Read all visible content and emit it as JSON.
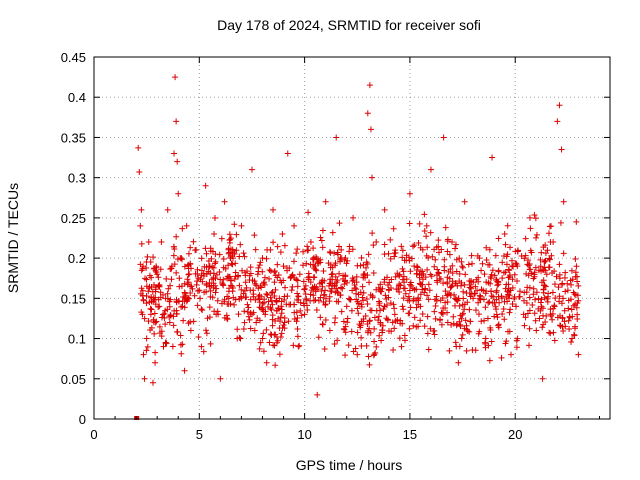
{
  "chart_data": {
    "type": "scatter",
    "title": "Day 178 of 2024, SRMTID for receiver sofi",
    "xlabel": "GPS time / hours",
    "ylabel": "SRMTID / TECUs",
    "xlim": [
      0,
      24.5
    ],
    "ylim": [
      0,
      0.45
    ],
    "x_ticks": [
      0,
      5,
      10,
      15,
      20
    ],
    "x_tick_labels": [
      "0",
      "5",
      "10",
      "15",
      "20"
    ],
    "y_ticks": [
      0,
      0.05,
      0.1,
      0.15,
      0.2,
      0.25,
      0.3,
      0.35,
      0.4,
      0.45
    ],
    "y_tick_labels": [
      "0",
      "0.05",
      "0.1",
      "0.15",
      "0.2",
      "0.25",
      "0.3",
      "0.35",
      "0.4",
      "0.45"
    ],
    "grid": true,
    "legend": "none",
    "marker": "plus",
    "marker_color": "#dd0000",
    "x_range_of_data": [
      2.0,
      23.0
    ],
    "series": [
      {
        "points": [
          [
            2.0,
            0.0
          ],
          [
            2.05,
            0.0
          ],
          [
            2.1,
            0.337
          ],
          [
            2.15,
            0.307
          ],
          [
            2.2,
            0.24
          ],
          [
            2.25,
            0.26
          ],
          [
            2.3,
            0.13
          ],
          [
            2.35,
            0.08
          ],
          [
            2.4,
            0.05
          ],
          [
            2.5,
            0.1
          ],
          [
            2.6,
            0.22
          ],
          [
            2.7,
            0.13
          ],
          [
            2.8,
            0.045
          ],
          [
            2.9,
            0.07
          ],
          [
            3.0,
            0.18
          ],
          [
            3.1,
            0.14
          ],
          [
            3.2,
            0.22
          ],
          [
            3.3,
            0.09
          ],
          [
            3.4,
            0.15
          ],
          [
            3.5,
            0.26
          ],
          [
            3.6,
            0.12
          ],
          [
            3.7,
            0.19
          ],
          [
            3.8,
            0.33
          ],
          [
            3.85,
            0.425
          ],
          [
            3.9,
            0.37
          ],
          [
            3.95,
            0.32
          ],
          [
            4.0,
            0.28
          ],
          [
            4.1,
            0.2
          ],
          [
            4.2,
            0.14
          ],
          [
            4.3,
            0.06
          ],
          [
            4.4,
            0.24
          ],
          [
            4.5,
            0.17
          ],
          [
            4.6,
            0.11
          ],
          [
            4.8,
            0.21
          ],
          [
            5.0,
            0.16
          ],
          [
            5.1,
            0.09
          ],
          [
            5.3,
            0.29
          ],
          [
            5.5,
            0.19
          ],
          [
            5.7,
            0.23
          ],
          [
            5.8,
            0.13
          ],
          [
            6.0,
            0.05
          ],
          [
            6.2,
            0.27
          ],
          [
            6.4,
            0.15
          ],
          [
            6.6,
            0.2
          ],
          [
            6.8,
            0.1
          ],
          [
            7.0,
            0.24
          ],
          [
            7.2,
            0.17
          ],
          [
            7.5,
            0.31
          ],
          [
            7.7,
            0.12
          ],
          [
            8.0,
            0.2
          ],
          [
            8.2,
            0.07
          ],
          [
            8.5,
            0.26
          ],
          [
            8.8,
            0.15
          ],
          [
            9.0,
            0.19
          ],
          [
            9.2,
            0.33
          ],
          [
            9.5,
            0.24
          ],
          [
            9.7,
            0.09
          ],
          [
            10.0,
            0.13
          ],
          [
            10.3,
            0.22
          ],
          [
            10.6,
            0.03
          ],
          [
            10.8,
            0.17
          ],
          [
            11.0,
            0.27
          ],
          [
            11.2,
            0.11
          ],
          [
            11.5,
            0.35
          ],
          [
            11.7,
            0.2
          ],
          [
            12.0,
            0.14
          ],
          [
            12.3,
            0.25
          ],
          [
            12.5,
            0.08
          ],
          [
            12.8,
            0.18
          ],
          [
            13.0,
            0.38
          ],
          [
            13.1,
            0.415
          ],
          [
            13.15,
            0.36
          ],
          [
            13.2,
            0.3
          ],
          [
            13.4,
            0.22
          ],
          [
            13.6,
            0.12
          ],
          [
            13.8,
            0.26
          ],
          [
            14.0,
            0.16
          ],
          [
            14.3,
            0.21
          ],
          [
            14.6,
            0.09
          ],
          [
            15.0,
            0.28
          ],
          [
            15.2,
            0.19
          ],
          [
            15.5,
            0.14
          ],
          [
            15.8,
            0.24
          ],
          [
            16.0,
            0.31
          ],
          [
            16.3,
            0.17
          ],
          [
            16.6,
            0.35
          ],
          [
            16.8,
            0.12
          ],
          [
            17.0,
            0.22
          ],
          [
            17.3,
            0.07
          ],
          [
            17.6,
            0.27
          ],
          [
            18.0,
            0.15
          ],
          [
            18.3,
            0.2
          ],
          [
            18.6,
            0.1
          ],
          [
            18.9,
            0.325
          ],
          [
            19.2,
            0.17
          ],
          [
            19.5,
            0.23
          ],
          [
            19.8,
            0.08
          ],
          [
            20.1,
            0.19
          ],
          [
            20.4,
            0.13
          ],
          [
            20.7,
            0.25
          ],
          [
            21.0,
            0.11
          ],
          [
            21.3,
            0.05
          ],
          [
            21.5,
            0.18
          ],
          [
            21.8,
            0.22
          ],
          [
            22.0,
            0.37
          ],
          [
            22.1,
            0.39
          ],
          [
            22.2,
            0.335
          ],
          [
            22.3,
            0.27
          ],
          [
            22.5,
            0.16
          ],
          [
            22.7,
            0.1
          ],
          [
            22.9,
            0.245
          ],
          [
            23.0,
            0.08
          ]
        ]
      }
    ],
    "density_bands": [
      [
        2.2,
        23.0,
        0.06,
        0.26,
        1400
      ]
    ]
  }
}
